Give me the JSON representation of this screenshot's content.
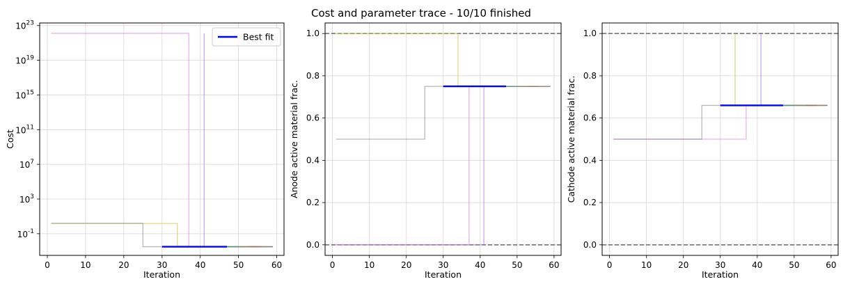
{
  "figure": {
    "title": "Cost and parameter trace - 10/10 finished"
  },
  "chart_data": [
    {
      "type": "line",
      "name": "cost-trace",
      "xlabel": "Iteration",
      "ylabel": "Cost",
      "yscale": "log",
      "xlim": [
        -2.0,
        61.9
      ],
      "ylim_log10": [
        -3.5,
        23.3
      ],
      "xticks": [
        0,
        10,
        20,
        30,
        40,
        50,
        60
      ],
      "ytick_exponents": [
        -1,
        3,
        7,
        11,
        15,
        19,
        23
      ],
      "ytick_base": "10",
      "grid": true,
      "legend": {
        "entries": [
          "Best fit"
        ],
        "placement": "top-right"
      },
      "traces": [
        {
          "color": "#dd77cc",
          "points": [
            [
              1,
              22.1
            ],
            [
              37,
              22.1
            ],
            [
              37,
              -2.5
            ],
            [
              59,
              -2.5
            ]
          ]
        },
        {
          "color": "#9966dd",
          "points": [
            [
              41,
              22.1
            ],
            [
              41,
              -2.5
            ],
            [
              59,
              -2.5
            ]
          ]
        },
        {
          "color": "#bcbd22",
          "points": [
            [
              1,
              0.18
            ],
            [
              34,
              0.18
            ],
            [
              34,
              -2.5
            ],
            [
              59,
              -2.5
            ]
          ]
        },
        {
          "color": "#1f77b4",
          "points": [
            [
              30,
              -2.5
            ],
            [
              59,
              -2.5
            ]
          ]
        },
        {
          "color": "#17becf",
          "points": [
            [
              45,
              -2.5
            ],
            [
              57,
              -2.5
            ]
          ]
        },
        {
          "color": "#2ca02c",
          "points": [
            [
              47,
              -2.5
            ],
            [
              55,
              -2.5
            ]
          ]
        },
        {
          "color": "#ff7f0e",
          "points": [
            [
              50,
              -2.5
            ],
            [
              58,
              -2.5
            ]
          ]
        },
        {
          "color": "#d62728",
          "points": [
            [
              53,
              -2.5
            ],
            [
              56,
              -2.5
            ]
          ]
        },
        {
          "color": "#7f7f7f",
          "points": [
            [
              1,
              0.2
            ],
            [
              25,
              0.2
            ],
            [
              25,
              -2.5
            ],
            [
              59,
              -2.5
            ]
          ]
        }
      ],
      "best_fit": {
        "name": "Best fit",
        "color": "#0000ff",
        "points": [
          [
            30,
            -2.5
          ],
          [
            47,
            -2.5
          ]
        ]
      }
    },
    {
      "type": "line",
      "name": "anode-trace",
      "xlabel": "Iteration",
      "ylabel": "Anode active material frac.",
      "xlim": [
        -2.0,
        61.9
      ],
      "ylim": [
        -0.05,
        1.05
      ],
      "xticks": [
        0,
        10,
        20,
        30,
        40,
        50,
        60
      ],
      "yticks": [
        "0.0",
        "0.2",
        "0.4",
        "0.6",
        "0.8",
        "1.0"
      ],
      "ytick_values": [
        0.0,
        0.2,
        0.4,
        0.6,
        0.8,
        1.0
      ],
      "grid": true,
      "bounds": [
        0.0,
        1.0
      ],
      "traces": [
        {
          "color": "#dd77cc",
          "points": [
            [
              1,
              0.0
            ],
            [
              37,
              0.0
            ],
            [
              37,
              0.75
            ],
            [
              59,
              0.75
            ]
          ]
        },
        {
          "color": "#9966dd",
          "points": [
            [
              1,
              0.0
            ],
            [
              41,
              0.0
            ],
            [
              41,
              0.75
            ],
            [
              59,
              0.75
            ]
          ]
        },
        {
          "color": "#bcbd22",
          "points": [
            [
              1,
              1.0
            ],
            [
              34,
              1.0
            ],
            [
              34,
              0.75
            ],
            [
              59,
              0.75
            ]
          ]
        },
        {
          "color": "#1f77b4",
          "points": [
            [
              30,
              0.75
            ],
            [
              59,
              0.75
            ]
          ]
        },
        {
          "color": "#17becf",
          "points": [
            [
              45,
              0.75
            ],
            [
              57,
              0.75
            ]
          ]
        },
        {
          "color": "#2ca02c",
          "points": [
            [
              47,
              0.75
            ],
            [
              55,
              0.75
            ]
          ]
        },
        {
          "color": "#ff7f0e",
          "points": [
            [
              50,
              0.75
            ],
            [
              58,
              0.75
            ]
          ]
        },
        {
          "color": "#d62728",
          "points": [
            [
              53,
              0.75
            ],
            [
              56,
              0.75
            ]
          ]
        },
        {
          "color": "#7f7f7f",
          "points": [
            [
              1,
              0.5
            ],
            [
              25,
              0.5
            ],
            [
              25,
              0.75
            ],
            [
              59,
              0.75
            ]
          ]
        }
      ],
      "best_fit": {
        "name": "Best fit",
        "color": "#0000ff",
        "points": [
          [
            30,
            0.75
          ],
          [
            47,
            0.75
          ]
        ]
      }
    },
    {
      "type": "line",
      "name": "cathode-trace",
      "xlabel": "Iteration",
      "ylabel": "Cathode active material frac.",
      "xlim": [
        -2.0,
        61.9
      ],
      "ylim": [
        -0.05,
        1.05
      ],
      "xticks": [
        0,
        10,
        20,
        30,
        40,
        50,
        60
      ],
      "yticks": [
        "0.0",
        "0.2",
        "0.4",
        "0.6",
        "0.8",
        "1.0"
      ],
      "ytick_values": [
        0.0,
        0.2,
        0.4,
        0.6,
        0.8,
        1.0
      ],
      "grid": true,
      "bounds": [
        0.0,
        1.0
      ],
      "traces": [
        {
          "color": "#dd77cc",
          "points": [
            [
              1,
              0.5
            ],
            [
              37,
              0.5
            ],
            [
              37,
              0.66
            ],
            [
              59,
              0.66
            ]
          ]
        },
        {
          "color": "#9966dd",
          "points": [
            [
              41,
              1.0
            ],
            [
              41,
              0.66
            ],
            [
              59,
              0.66
            ]
          ]
        },
        {
          "color": "#bcbd22",
          "points": [
            [
              34,
              1.0
            ],
            [
              34,
              0.66
            ],
            [
              59,
              0.66
            ]
          ]
        },
        {
          "color": "#1f77b4",
          "points": [
            [
              30,
              0.66
            ],
            [
              59,
              0.66
            ]
          ]
        },
        {
          "color": "#17becf",
          "points": [
            [
              45,
              0.66
            ],
            [
              57,
              0.66
            ]
          ]
        },
        {
          "color": "#2ca02c",
          "points": [
            [
              47,
              0.66
            ],
            [
              55,
              0.66
            ]
          ]
        },
        {
          "color": "#ff7f0e",
          "points": [
            [
              50,
              0.66
            ],
            [
              58,
              0.66
            ]
          ]
        },
        {
          "color": "#d62728",
          "points": [
            [
              53,
              0.66
            ],
            [
              56,
              0.66
            ]
          ]
        },
        {
          "color": "#7f7f7f",
          "points": [
            [
              1,
              0.5
            ],
            [
              25,
              0.5
            ],
            [
              25,
              0.66
            ],
            [
              59,
              0.66
            ]
          ]
        }
      ],
      "best_fit": {
        "name": "Best fit",
        "color": "#0000ff",
        "points": [
          [
            30,
            0.66
          ],
          [
            47,
            0.66
          ]
        ]
      }
    }
  ]
}
